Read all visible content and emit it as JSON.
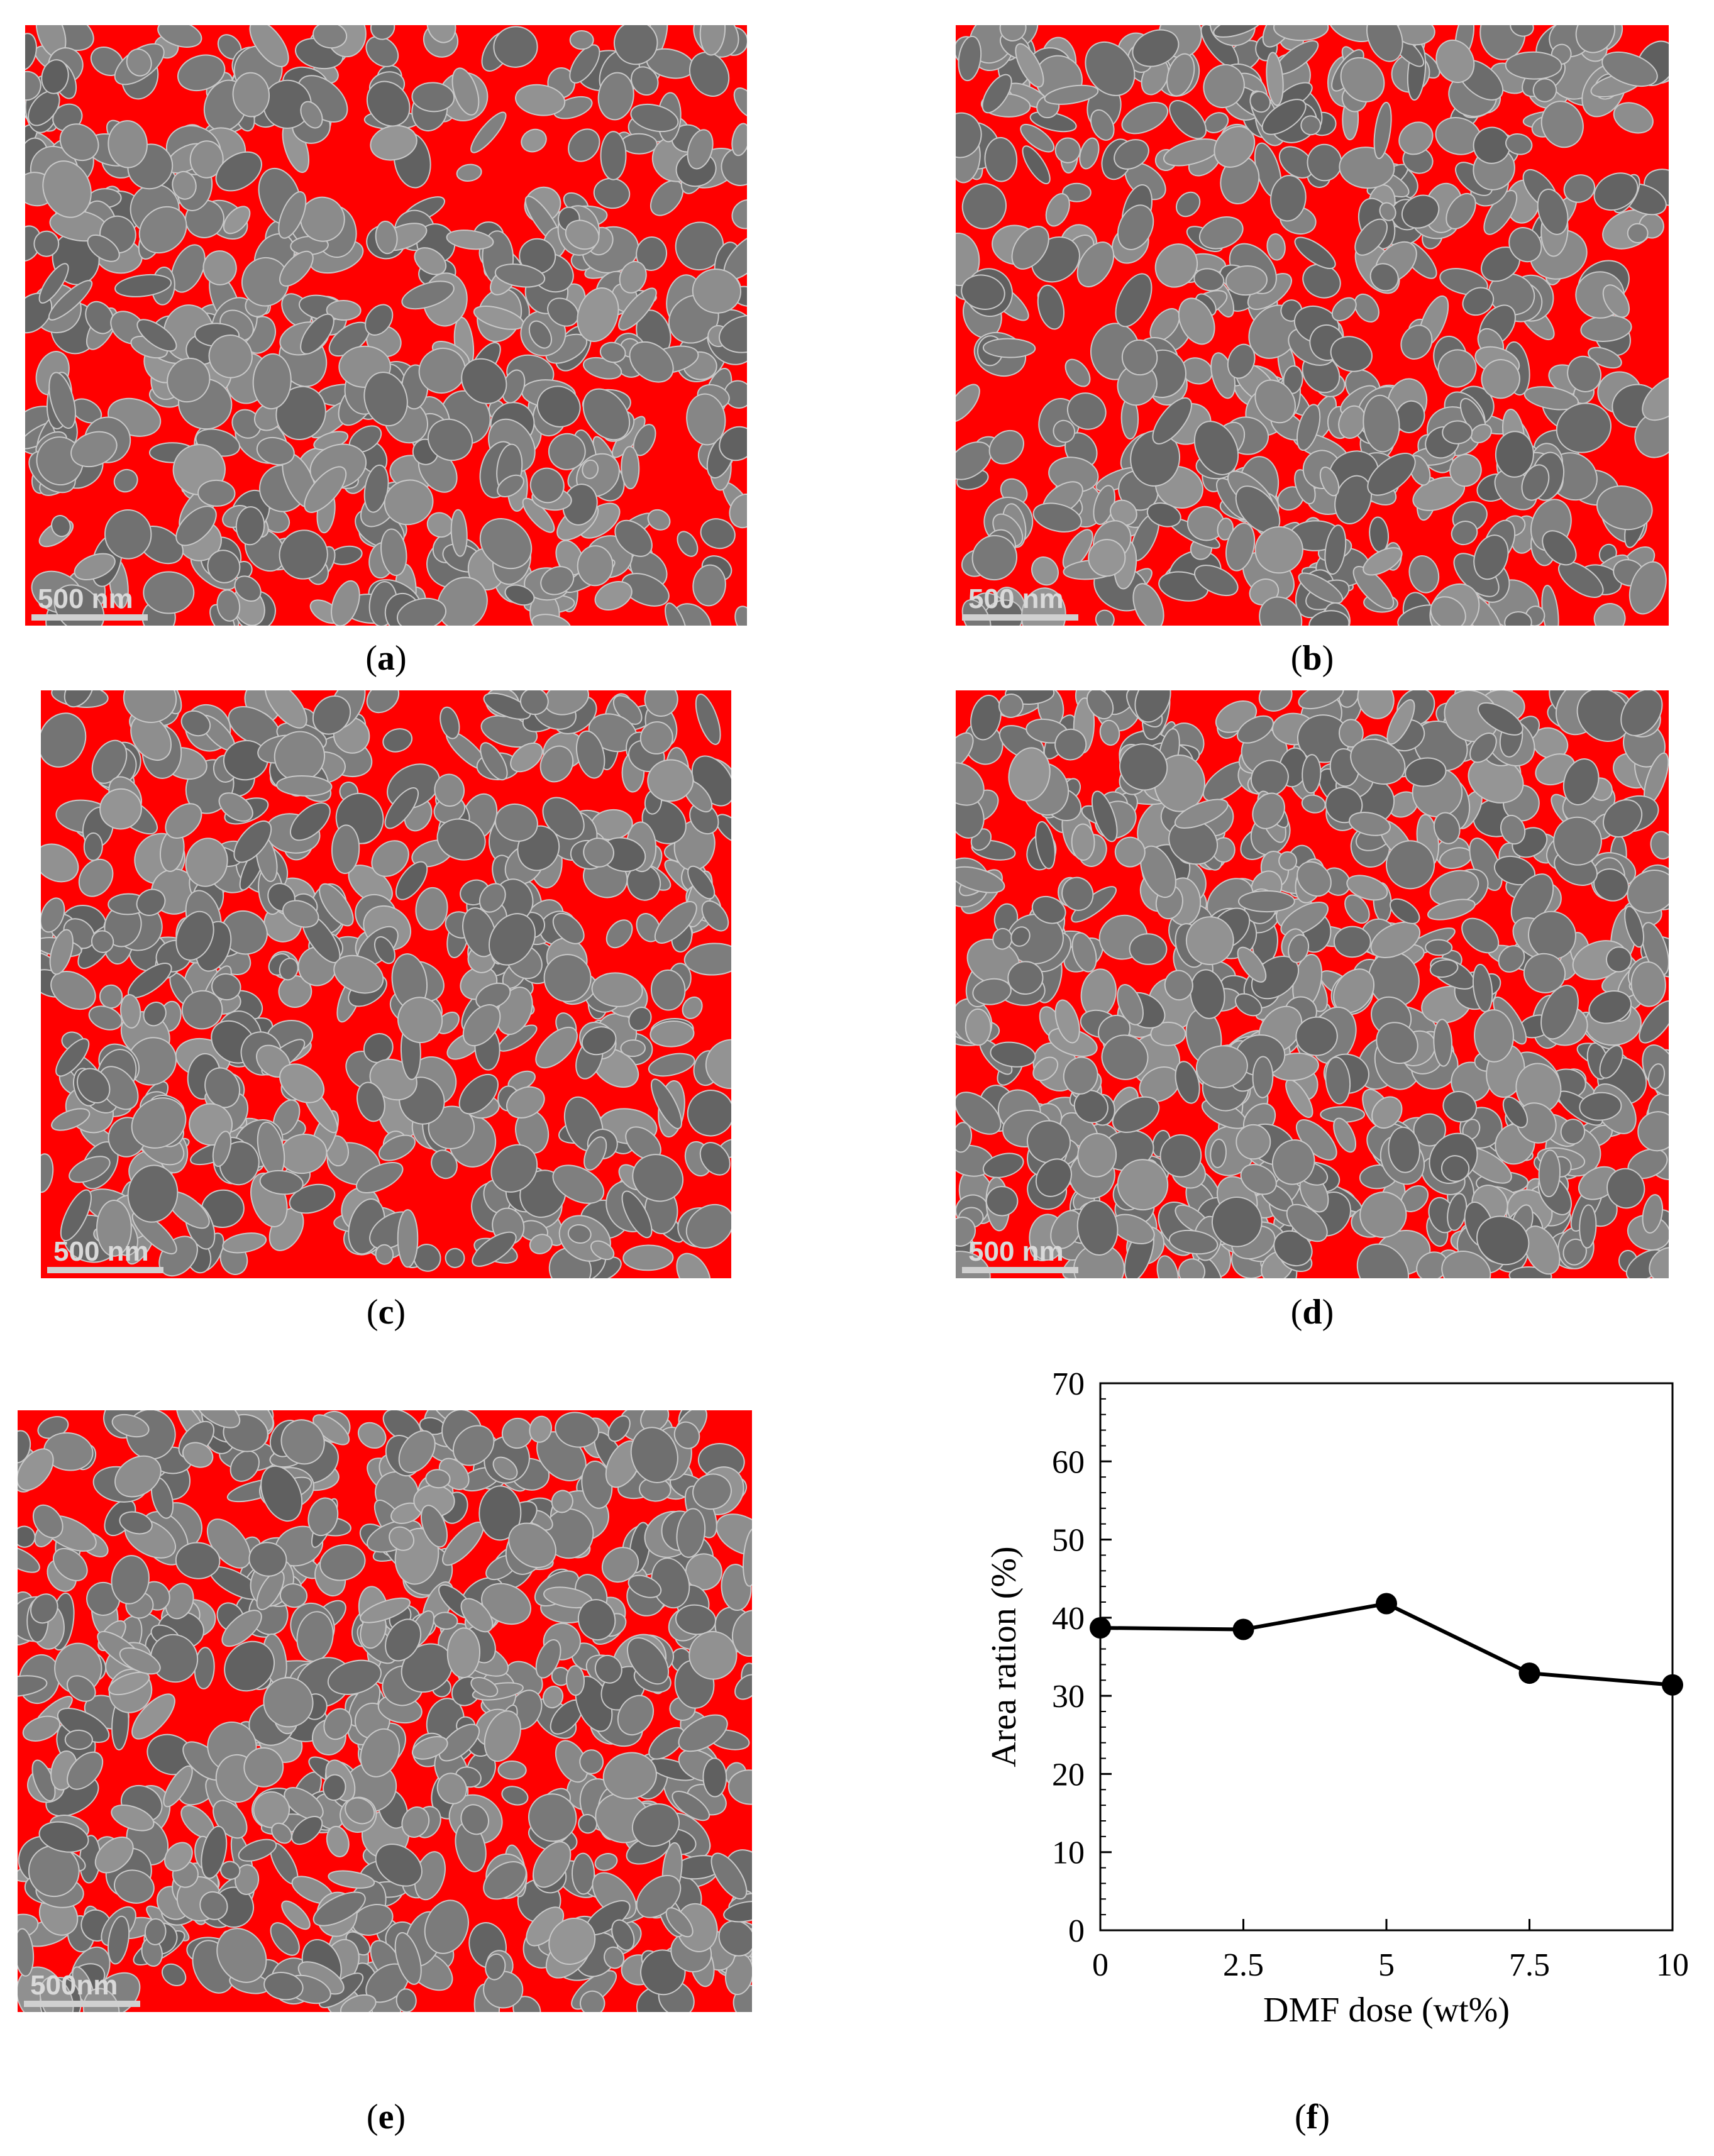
{
  "panels": [
    {
      "id": "a",
      "scale": "500 nm"
    },
    {
      "id": "b",
      "scale": "500 nm"
    },
    {
      "id": "c",
      "scale": "500 nm"
    },
    {
      "id": "d",
      "scale": "500 nm"
    },
    {
      "id": "e",
      "scale": "500nm"
    }
  ],
  "captions": {
    "a": "a",
    "b": "b",
    "c": "c",
    "d": "d",
    "e": "e",
    "f": "f"
  },
  "colors": {
    "background_red": "#ff0000",
    "particle_gray": "#7a7a7a",
    "particle_light": "#a8a8a8"
  },
  "chart_data": {
    "type": "line",
    "x": [
      0,
      2.5,
      5,
      7.5,
      10
    ],
    "values": [
      38.7,
      38.5,
      41.8,
      32.9,
      31.4
    ],
    "xticks": [
      "0",
      "2.5",
      "5",
      "7.5",
      "10"
    ],
    "yticks": [
      "0",
      "10",
      "20",
      "30",
      "40",
      "50",
      "60",
      "70"
    ],
    "xlabel": "DMF dose (wt%)",
    "ylabel": "Area ration (%)",
    "xlim": [
      0,
      10
    ],
    "ylim": [
      0,
      70
    ],
    "grid": false,
    "marker": "filled-circle",
    "line_color": "#000000"
  }
}
